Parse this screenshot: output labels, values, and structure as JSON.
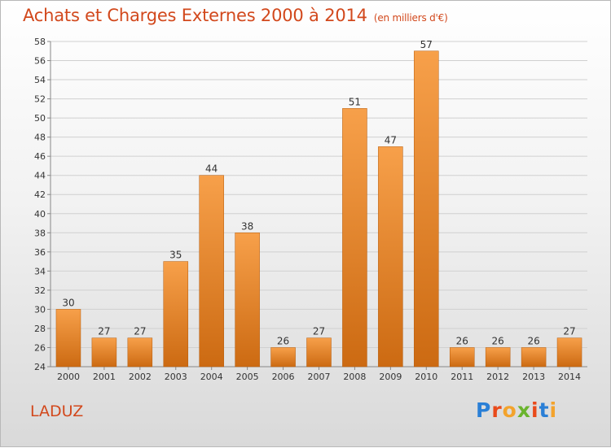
{
  "header": {
    "title": "Achats et Charges Externes 2000 à 2014",
    "unit": "(en milliers d'€)"
  },
  "footer": {
    "commune": "LADUZ",
    "logo_letters": [
      "P",
      "r",
      "o",
      "x",
      "i",
      "t",
      "i"
    ],
    "logo_colors": [
      "#2a7fd6",
      "#e94a1b",
      "#f3a32c",
      "#6ab42d",
      "#e94a1b",
      "#2a7fd6",
      "#f3a32c"
    ]
  },
  "colors": {
    "bar_light": "#f7a04a",
    "bar_dark": "#cc6a12",
    "bar_edge": "#b55a0a",
    "grid": "#d0d0d0",
    "text": "#333333"
  },
  "chart_data": {
    "type": "bar",
    "title": "Achats et Charges Externes 2000 à 2014",
    "categories": [
      "2000",
      "2001",
      "2002",
      "2003",
      "2004",
      "2005",
      "2006",
      "2007",
      "2008",
      "2009",
      "2010",
      "2011",
      "2012",
      "2013",
      "2014"
    ],
    "values": [
      30,
      27,
      27,
      35,
      44,
      38,
      26,
      27,
      51,
      47,
      57,
      26,
      26,
      26,
      27
    ],
    "ylim": [
      24,
      58
    ],
    "yticks": [
      24,
      26,
      28,
      30,
      32,
      34,
      36,
      38,
      40,
      42,
      44,
      46,
      48,
      50,
      52,
      54,
      56,
      58
    ],
    "grid": true,
    "data_labels": true
  }
}
